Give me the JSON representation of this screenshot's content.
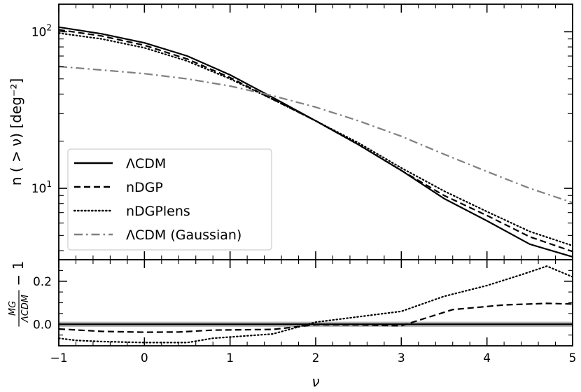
{
  "chart_data": [
    {
      "type": "line",
      "panel": "top",
      "xlim": [
        -1,
        5
      ],
      "ylim": [
        3.5,
        150
      ],
      "yscale": "log",
      "xlabel": "",
      "ylabel": "n ( > ν) [deg⁻²]",
      "ytick_labels": [
        {
          "value": 10,
          "base": "10",
          "exp": "1"
        },
        {
          "value": 100,
          "base": "10",
          "exp": "2"
        }
      ],
      "legend_position": "lower-left",
      "series": [
        {
          "name": "ΛCDM",
          "color": "#000000",
          "style": "solid",
          "x": [
            -1,
            -0.5,
            0,
            0.5,
            1,
            1.5,
            2,
            2.5,
            3,
            3.5,
            4,
            4.5,
            5
          ],
          "y": [
            107,
            97,
            85,
            70,
            53,
            38,
            27,
            19,
            13,
            8.6,
            6.2,
            4.4,
            3.65
          ]
        },
        {
          "name": "nDGP",
          "color": "#000000",
          "style": "dashed",
          "x": [
            -1,
            -0.5,
            0,
            0.5,
            1,
            1.5,
            2,
            2.5,
            3,
            3.5,
            4,
            4.5,
            5
          ],
          "y": [
            103,
            94,
            82,
            67,
            51,
            37,
            27,
            19,
            13,
            9.0,
            6.7,
            4.9,
            3.95
          ]
        },
        {
          "name": "nDGPlens",
          "color": "#000000",
          "style": "dotted",
          "x": [
            -1,
            -0.5,
            0,
            0.5,
            1,
            1.5,
            2,
            2.5,
            3,
            3.5,
            4,
            4.5,
            5
          ],
          "y": [
            98,
            90,
            79,
            65,
            50,
            37,
            27,
            19.5,
            13.5,
            9.6,
            7.1,
            5.3,
            4.3
          ]
        },
        {
          "name": "ΛCDM (Gaussian)",
          "color": "#808080",
          "style": "dashdot",
          "x": [
            -1,
            -0.5,
            0,
            0.5,
            1,
            1.5,
            2,
            2.5,
            3,
            3.5,
            4,
            4.5,
            5
          ],
          "y": [
            60,
            57,
            54,
            50,
            45,
            39,
            33,
            27,
            21.5,
            16.5,
            12.8,
            10,
            8.1
          ]
        }
      ]
    },
    {
      "type": "line",
      "panel": "bottom",
      "xlim": [
        -1,
        5
      ],
      "ylim": [
        -0.1,
        0.3
      ],
      "xticks": [
        -1,
        0,
        1,
        2,
        3,
        4,
        5
      ],
      "xtick_labels": [
        "−1",
        "0",
        "1",
        "2",
        "3",
        "4",
        "5"
      ],
      "yticks": [
        0.0,
        0.2
      ],
      "ytick_labels": [
        "0.0",
        "0.2"
      ],
      "xlabel": "ν",
      "ylabel_frac_num": "MG",
      "ylabel_frac_den": "ΛCDM",
      "ylabel_tail": "− 1",
      "band": {
        "low": -0.012,
        "high": 0.012,
        "color": "#a6a6a6"
      },
      "series": [
        {
          "name": "nDGP",
          "color": "#000000",
          "style": "dashed",
          "x": [
            -1,
            -0.5,
            0,
            0.4,
            0.8,
            1.5,
            2,
            2.5,
            3,
            3.6,
            4.2,
            4.7,
            5
          ],
          "y": [
            -0.022,
            -0.033,
            -0.037,
            -0.036,
            -0.027,
            -0.024,
            -0.002,
            -0.003,
            -0.007,
            0.068,
            0.09,
            0.097,
            0.094
          ]
        },
        {
          "name": "nDGPlens",
          "color": "#000000",
          "style": "dotted",
          "x": [
            -1,
            -0.8,
            -0.5,
            0,
            0.5,
            0.8,
            1.5,
            2,
            2.5,
            3,
            3.5,
            4,
            4.4,
            4.7,
            5
          ],
          "y": [
            -0.065,
            -0.075,
            -0.08,
            -0.085,
            -0.085,
            -0.065,
            -0.045,
            0.01,
            0.035,
            0.06,
            0.13,
            0.18,
            0.23,
            0.27,
            0.22
          ]
        }
      ]
    }
  ]
}
